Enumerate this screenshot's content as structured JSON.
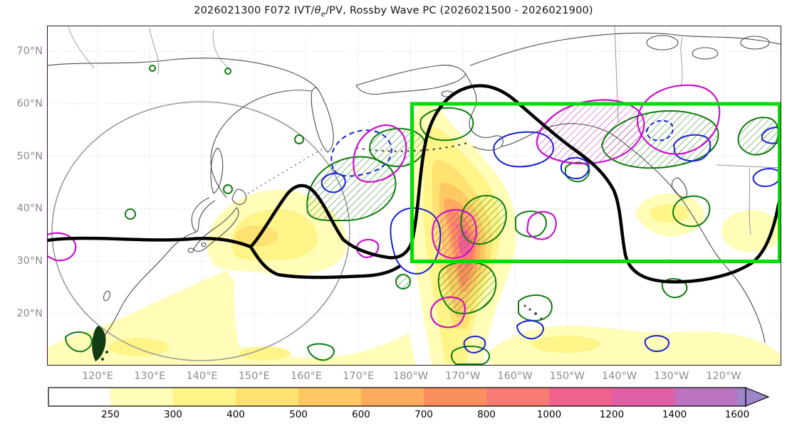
{
  "title": {
    "part1": "2026021300 F072 IVT/",
    "theta": "θ",
    "theta_sub": "e",
    "part2": "/PV, Rossby Wave PC (2026021500 - 2026021900)"
  },
  "axes": {
    "lat_ticks": [
      "70°N",
      "60°N",
      "50°N",
      "40°N",
      "30°N",
      "20°N"
    ],
    "lon_ticks": [
      "120°E",
      "130°E",
      "140°E",
      "150°E",
      "160°E",
      "170°E",
      "180°W",
      "170°W",
      "160°W",
      "150°W",
      "140°W",
      "130°W",
      "120°W"
    ]
  },
  "colorbar": {
    "tick_labels": [
      "250",
      "300",
      "400",
      "500",
      "600",
      "700",
      "800",
      "1000",
      "1200",
      "1400",
      "1600"
    ],
    "colors": [
      "#ffffff",
      "#fffdb8",
      "#fff488",
      "#ffe271",
      "#fec963",
      "#fcab5f",
      "#fa8e5e",
      "#f77b72",
      "#ef628d",
      "#e05fa6",
      "#bc73c2",
      "#9d85c9"
    ]
  },
  "chart_data": {
    "type": "heatmap",
    "title": "2026021300 F072 IVT/θe/PV, Rossby Wave PC (2026021500 - 2026021900)",
    "init_time": "2026021300",
    "forecast_hour": "F072",
    "valid_window": "2026021500 - 2026021900",
    "x": {
      "label": "longitude",
      "ticks": [
        "120°E",
        "130°E",
        "140°E",
        "150°E",
        "160°E",
        "170°E",
        "180°W",
        "170°W",
        "160°W",
        "150°W",
        "140°W",
        "130°W",
        "120°W"
      ]
    },
    "y": {
      "label": "latitude",
      "ticks": [
        "70°N",
        "60°N",
        "50°N",
        "40°N",
        "30°N",
        "20°N"
      ]
    },
    "colorbar_levels": [
      250,
      300,
      400,
      500,
      600,
      700,
      800,
      1000,
      1200,
      1400,
      1600
    ],
    "colorbar_extend": "max (arrow, purple)",
    "layers": [
      {
        "name": "IVT filled contours",
        "colors": "yellow-orange-red-pink-purple",
        "peak_region": {
          "lon": "about 170°W",
          "lat": "30-45°N",
          "peak_band": "1000-1200"
        }
      },
      {
        "name": "secondary IVT maxima",
        "regions": [
          "Japan / 140-155°E near 35-40°N (250-400)",
          "southern boundary band 10-15°N (250-300)",
          "155-150°W near 40°N (250-300)"
        ]
      },
      {
        "name": "dynamic tropopause PV contour",
        "style": "thick black line spanning the basin with trough near 160-175°E and ridge arching to 60°N near the dateline"
      },
      {
        "name": "theta-e contours",
        "style": "dark green lines, diagonal-hatched regions"
      },
      {
        "name": "PV anomaly contours",
        "style": "magenta lines, diagonal-hatched regions near 165°E/52N, 170°W/35N, 160-140°W/55N"
      },
      {
        "name": "anomaly contours",
        "style": "blue solid and dashed closed contours"
      },
      {
        "name": "Rossby Wave PC target box",
        "style": "thick bright-green rectangle",
        "extent": {
          "lon": "180° to eastern map edge",
          "lat": "30°N-60°N"
        }
      },
      {
        "name": "great-circle reference ring",
        "style": "thin gray circle over the western Pacific, roughly 115°E-175°E, 12°N-60°N"
      }
    ]
  }
}
